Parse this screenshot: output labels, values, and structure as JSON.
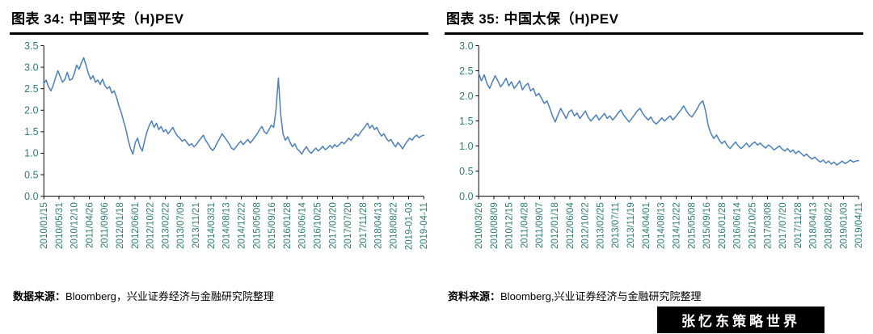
{
  "panels": [
    {
      "title": "图表 34: 中国平安（H)PEV",
      "source_label": "数据来源：",
      "source_text": "Bloomberg，兴业证券经济与金融研究院整理"
    },
    {
      "title": "图表 35: 中国太保（H)PEV",
      "source_label": "资料来源：",
      "source_text": "Bloomberg,兴业证券经济与金融研究院整理"
    }
  ],
  "watermark": {
    "text": "张忆东策略世界",
    "bg": "#000000",
    "color": "#ffffff"
  },
  "chart_data": [
    {
      "type": "line",
      "title": "图表 34: 中国平安（H)PEV",
      "xlabel": "",
      "ylabel": "",
      "ylim": [
        0.0,
        3.5
      ],
      "yticks": [
        0.0,
        0.5,
        1.0,
        1.5,
        2.0,
        2.5,
        3.0,
        3.5
      ],
      "grid": false,
      "legend": "none",
      "line_color": "#4F81BD",
      "axis_color": "#2E7D74",
      "xticklabels": [
        "2010/01/15",
        "2010/05/31",
        "2010/12/10",
        "2011/04/26",
        "2011/09/06",
        "2012/01/18",
        "2012/06/01",
        "2012/10/22",
        "2013/02/22",
        "2013/07/09",
        "2013/11/21",
        "2014/03/31",
        "2014/08/13",
        "2014/12/22",
        "2015/05/08",
        "2015/09/16",
        "2016/01/28",
        "2016/06/14",
        "2016/10/25",
        "2017/03/20",
        "2017/07/20",
        "2017/11/28",
        "2018/04/13",
        "2018/08/22",
        "2019-01-03",
        "2019-04-11"
      ],
      "values": [
        2.62,
        2.7,
        2.55,
        2.45,
        2.58,
        2.75,
        2.92,
        2.78,
        2.65,
        2.72,
        2.88,
        2.7,
        2.72,
        2.85,
        3.05,
        2.95,
        3.1,
        3.22,
        3.05,
        2.85,
        2.72,
        2.8,
        2.65,
        2.7,
        2.6,
        2.72,
        2.58,
        2.5,
        2.55,
        2.4,
        2.45,
        2.3,
        2.1,
        1.95,
        1.75,
        1.55,
        1.3,
        1.1,
        0.98,
        1.25,
        1.35,
        1.15,
        1.05,
        1.3,
        1.5,
        1.65,
        1.75,
        1.6,
        1.7,
        1.55,
        1.62,
        1.5,
        1.55,
        1.45,
        1.52,
        1.6,
        1.48,
        1.4,
        1.35,
        1.28,
        1.32,
        1.25,
        1.18,
        1.22,
        1.15,
        1.2,
        1.28,
        1.35,
        1.42,
        1.3,
        1.22,
        1.12,
        1.06,
        1.14,
        1.25,
        1.35,
        1.45,
        1.38,
        1.3,
        1.22,
        1.12,
        1.08,
        1.15,
        1.22,
        1.28,
        1.2,
        1.26,
        1.32,
        1.24,
        1.3,
        1.38,
        1.45,
        1.55,
        1.62,
        1.5,
        1.45,
        1.55,
        1.65,
        1.6,
        2.0,
        2.75,
        1.9,
        1.45,
        1.3,
        1.38,
        1.25,
        1.15,
        1.22,
        1.1,
        1.05,
        0.98,
        1.08,
        1.15,
        1.05,
        1.0,
        1.06,
        1.12,
        1.05,
        1.1,
        1.16,
        1.08,
        1.12,
        1.18,
        1.12,
        1.2,
        1.15,
        1.2,
        1.26,
        1.22,
        1.28,
        1.35,
        1.3,
        1.38,
        1.45,
        1.4,
        1.48,
        1.55,
        1.62,
        1.7,
        1.58,
        1.65,
        1.55,
        1.6,
        1.48,
        1.4,
        1.45,
        1.35,
        1.28,
        1.32,
        1.22,
        1.15,
        1.25,
        1.18,
        1.1,
        1.2,
        1.28,
        1.35,
        1.3,
        1.38,
        1.42,
        1.36,
        1.4,
        1.42
      ]
    },
    {
      "type": "line",
      "title": "图表 35: 中国太保（H)PEV",
      "xlabel": "",
      "ylabel": "",
      "ylim": [
        0.0,
        3.0
      ],
      "yticks": [
        0.0,
        0.5,
        1.0,
        1.5,
        2.0,
        2.5,
        3.0
      ],
      "grid": false,
      "legend": "none",
      "line_color": "#4F81BD",
      "axis_color": "#2E7D74",
      "xticklabels": [
        "2010/03/26",
        "2010/08/09",
        "2010/12/15",
        "2011/04/28",
        "2011/09/07",
        "2012/01/18",
        "2012/06/04",
        "2012/10/22",
        "2013/02/25",
        "2013/07/11",
        "2013/11/19",
        "2014/04/01",
        "2014/08/13",
        "2014/12/22",
        "2015/05/08",
        "2015/09/16",
        "2016/01/28",
        "2016/06/14",
        "2016/10/25",
        "2017/03/08",
        "2017/07/20",
        "2017/11/28",
        "2018/04/13",
        "2018/08/22",
        "2019/01/03",
        "2019/04/11"
      ],
      "values": [
        2.45,
        2.3,
        2.42,
        2.25,
        2.15,
        2.28,
        2.4,
        2.3,
        2.18,
        2.25,
        2.35,
        2.2,
        2.28,
        2.15,
        2.22,
        2.3,
        2.12,
        2.2,
        2.25,
        2.1,
        2.15,
        2.0,
        2.05,
        1.95,
        1.85,
        1.9,
        1.75,
        1.6,
        1.48,
        1.62,
        1.75,
        1.65,
        1.55,
        1.68,
        1.72,
        1.6,
        1.66,
        1.55,
        1.62,
        1.7,
        1.58,
        1.5,
        1.56,
        1.62,
        1.52,
        1.58,
        1.65,
        1.55,
        1.6,
        1.52,
        1.58,
        1.66,
        1.72,
        1.62,
        1.55,
        1.48,
        1.55,
        1.62,
        1.7,
        1.75,
        1.65,
        1.58,
        1.52,
        1.58,
        1.48,
        1.44,
        1.5,
        1.56,
        1.5,
        1.55,
        1.6,
        1.52,
        1.58,
        1.65,
        1.72,
        1.8,
        1.7,
        1.62,
        1.58,
        1.66,
        1.75,
        1.85,
        1.9,
        1.7,
        1.4,
        1.25,
        1.15,
        1.22,
        1.12,
        1.05,
        1.1,
        1.0,
        0.95,
        1.02,
        1.08,
        1.0,
        0.95,
        1.0,
        1.06,
        0.98,
        1.04,
        1.08,
        1.02,
        1.06,
        1.0,
        0.96,
        1.02,
        0.98,
        0.92,
        0.96,
        1.0,
        0.94,
        0.9,
        0.95,
        0.88,
        0.92,
        0.85,
        0.9,
        0.85,
        0.8,
        0.84,
        0.78,
        0.74,
        0.78,
        0.72,
        0.68,
        0.72,
        0.66,
        0.7,
        0.64,
        0.68,
        0.62,
        0.66,
        0.7,
        0.65,
        0.68,
        0.72,
        0.68,
        0.7,
        0.71
      ]
    }
  ]
}
